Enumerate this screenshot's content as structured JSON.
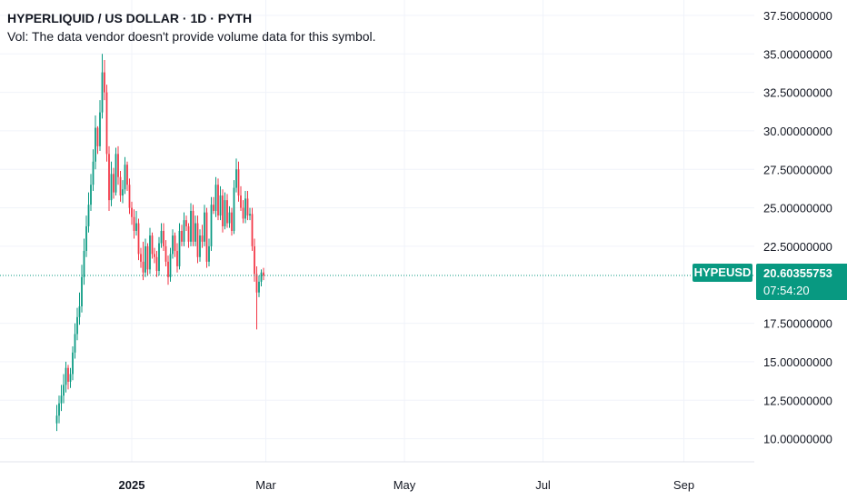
{
  "header": {
    "title": "HYPERLIQUID / US DOLLAR · 1D · PYTH",
    "volume_note": "Vol: The data vendor doesn't provide volume data for this symbol."
  },
  "last_price": {
    "ticker": "HYPEUSD",
    "price": "20.60355753",
    "countdown": "07:54:20"
  },
  "colors": {
    "up": "#089981",
    "down": "#f23645",
    "tag": "#089981",
    "grid": "#f0f3fa"
  },
  "chart_data": {
    "type": "candlestick",
    "title": "HYPERLIQUID / US DOLLAR · 1D · PYTH",
    "xlabel": "",
    "ylabel": "",
    "ylim": [
      8.5,
      38.5
    ],
    "yticks": [
      "37.50000000",
      "35.00000000",
      "32.50000000",
      "30.00000000",
      "27.50000000",
      "25.00000000",
      "22.50000000",
      "17.50000000",
      "15.00000000",
      "12.50000000",
      "10.00000000"
    ],
    "yticks_values": [
      37.5,
      35,
      32.5,
      30,
      27.5,
      25,
      22.5,
      17.5,
      15,
      12.5,
      10
    ],
    "xticks": [
      "2025",
      "Mar",
      "May",
      "Jul",
      "Sep"
    ],
    "xticks_dates": [
      "2025-01-01",
      "2025-03-01",
      "2025-05-01",
      "2025-07-01",
      "2025-09-01"
    ],
    "xlim": [
      "2024-11-04",
      "2025-10-02"
    ],
    "grid": true,
    "last_price": 20.60355753,
    "series": [
      {
        "dates": [
          "2024-11-29",
          "2024-11-30",
          "2024-12-01",
          "2024-12-02",
          "2024-12-03",
          "2024-12-04",
          "2024-12-05",
          "2024-12-06",
          "2024-12-07",
          "2024-12-08",
          "2024-12-09",
          "2024-12-10",
          "2024-12-11",
          "2024-12-12",
          "2024-12-13",
          "2024-12-14",
          "2024-12-15",
          "2024-12-16",
          "2024-12-17",
          "2024-12-18",
          "2024-12-19",
          "2024-12-20",
          "2024-12-21",
          "2024-12-22",
          "2024-12-23",
          "2024-12-24",
          "2024-12-25",
          "2024-12-26",
          "2024-12-27",
          "2024-12-28",
          "2024-12-29",
          "2024-12-30",
          "2024-12-31",
          "2025-01-01",
          "2025-01-02",
          "2025-01-03",
          "2025-01-04",
          "2025-01-05",
          "2025-01-06",
          "2025-01-07",
          "2025-01-08",
          "2025-01-09",
          "2025-01-10",
          "2025-01-11",
          "2025-01-12",
          "2025-01-13",
          "2025-01-14",
          "2025-01-15",
          "2025-01-16",
          "2025-01-17",
          "2025-01-18",
          "2025-01-19",
          "2025-01-20",
          "2025-01-21",
          "2025-01-22",
          "2025-01-23",
          "2025-01-24",
          "2025-01-25",
          "2025-01-26",
          "2025-01-27",
          "2025-01-28",
          "2025-01-29",
          "2025-01-30",
          "2025-01-31",
          "2025-02-01",
          "2025-02-02",
          "2025-02-03",
          "2025-02-04",
          "2025-02-05",
          "2025-02-06",
          "2025-02-07",
          "2025-02-08",
          "2025-02-09",
          "2025-02-10",
          "2025-02-11",
          "2025-02-12",
          "2025-02-13",
          "2025-02-14",
          "2025-02-15",
          "2025-02-16",
          "2025-02-17",
          "2025-02-18",
          "2025-02-19",
          "2025-02-20",
          "2025-02-21",
          "2025-02-22",
          "2025-02-23",
          "2025-02-24",
          "2025-02-25",
          "2025-02-26",
          "2025-02-27",
          "2025-02-28"
        ],
        "open": [
          11.0,
          11.5,
          12.3,
          12.8,
          13.5,
          14.6,
          13.7,
          14.2,
          15.6,
          16.8,
          17.9,
          18.6,
          20.5,
          22.2,
          23.8,
          25.2,
          26.5,
          28.0,
          30.2,
          29.0,
          31.2,
          33.8,
          32.5,
          28.5,
          25.5,
          27.2,
          26.0,
          28.5,
          27.0,
          25.8,
          26.2,
          27.8,
          26.5,
          25.0,
          24.4,
          23.5,
          24.0,
          22.0,
          21.5,
          20.8,
          22.5,
          21.0,
          23.2,
          22.0,
          21.8,
          20.9,
          22.7,
          23.5,
          22.5,
          21.5,
          20.5,
          22.0,
          23.2,
          22.2,
          21.2,
          23.5,
          22.8,
          24.2,
          23.8,
          22.8,
          24.8,
          22.8,
          24.0,
          21.8,
          23.2,
          22.8,
          24.7,
          21.5,
          22.5,
          25.2,
          24.8,
          26.5,
          24.5,
          25.8,
          23.8,
          25.5,
          24.0,
          24.7,
          23.5,
          26.3,
          27.5,
          25.8,
          25.0,
          24.3,
          25.6,
          24.5,
          24.6,
          22.5,
          20.7,
          19.5,
          20.2,
          20.8
        ],
        "close": [
          11.5,
          12.3,
          12.8,
          13.5,
          14.6,
          13.7,
          14.2,
          15.6,
          16.8,
          17.9,
          18.6,
          20.5,
          22.2,
          23.8,
          25.2,
          26.5,
          28.0,
          30.2,
          29.0,
          31.2,
          33.8,
          32.5,
          28.5,
          25.5,
          27.2,
          26.0,
          28.5,
          27.0,
          25.8,
          26.2,
          27.8,
          26.5,
          25.0,
          24.4,
          23.5,
          24.0,
          22.0,
          21.5,
          20.8,
          22.5,
          21.0,
          23.2,
          22.0,
          21.8,
          20.9,
          22.7,
          23.5,
          22.5,
          21.5,
          20.5,
          22.0,
          23.2,
          22.2,
          21.2,
          23.5,
          22.8,
          24.2,
          23.8,
          22.8,
          24.8,
          22.8,
          24.0,
          21.8,
          23.2,
          22.8,
          24.7,
          21.5,
          22.5,
          25.2,
          24.8,
          26.5,
          24.5,
          25.8,
          23.8,
          25.5,
          24.0,
          24.7,
          23.5,
          26.3,
          27.5,
          25.8,
          25.0,
          24.3,
          25.6,
          24.5,
          24.6,
          22.5,
          20.7,
          19.5,
          20.2,
          20.8,
          20.6
        ],
        "high": [
          12.2,
          12.8,
          13.5,
          14.2,
          15.0,
          14.8,
          14.6,
          16.0,
          17.5,
          18.5,
          19.5,
          21.3,
          23.0,
          24.5,
          26.0,
          27.2,
          28.8,
          31.0,
          30.3,
          32.0,
          35.0,
          34.6,
          33.0,
          29.0,
          28.0,
          27.6,
          28.9,
          29.0,
          27.4,
          26.8,
          28.3,
          28.0,
          26.9,
          25.4,
          24.9,
          24.8,
          24.3,
          22.4,
          22.8,
          23.0,
          22.7,
          23.7,
          23.4,
          22.4,
          22.2,
          23.1,
          24.0,
          24.0,
          22.9,
          21.9,
          22.4,
          23.6,
          23.4,
          22.7,
          24.0,
          23.9,
          24.7,
          24.5,
          24.0,
          25.3,
          25.2,
          24.5,
          24.5,
          23.6,
          23.9,
          25.2,
          25.0,
          23.0,
          25.7,
          25.7,
          27.0,
          26.9,
          26.4,
          26.2,
          26.0,
          25.9,
          25.1,
          25.0,
          26.8,
          28.2,
          28.0,
          26.4,
          25.5,
          26.1,
          26.1,
          25.0,
          25.0,
          23.0,
          21.2,
          20.6,
          21.0,
          21.1
        ],
        "low": [
          10.5,
          11.0,
          11.8,
          12.3,
          13.0,
          13.2,
          13.3,
          13.8,
          15.2,
          16.4,
          17.4,
          18.2,
          20.0,
          21.8,
          23.4,
          24.8,
          26.1,
          27.5,
          28.5,
          28.7,
          30.8,
          32.0,
          28.0,
          24.8,
          25.1,
          25.6,
          25.8,
          26.5,
          25.4,
          25.3,
          25.9,
          26.1,
          24.6,
          23.9,
          23.0,
          23.2,
          21.6,
          21.1,
          20.3,
          20.5,
          20.6,
          20.7,
          21.7,
          21.4,
          20.5,
          20.6,
          22.4,
          22.2,
          21.2,
          20.0,
          20.2,
          21.7,
          21.8,
          20.8,
          21.0,
          22.5,
          22.5,
          23.5,
          22.4,
          22.5,
          22.5,
          22.5,
          21.4,
          21.5,
          22.4,
          22.5,
          21.1,
          21.2,
          22.2,
          24.6,
          24.4,
          24.2,
          24.2,
          23.4,
          23.6,
          23.7,
          23.7,
          23.2,
          23.3,
          26.0,
          25.4,
          24.8,
          24.0,
          24.0,
          24.2,
          24.2,
          22.2,
          20.2,
          17.1,
          19.2,
          19.9,
          20.3
        ]
      }
    ]
  }
}
